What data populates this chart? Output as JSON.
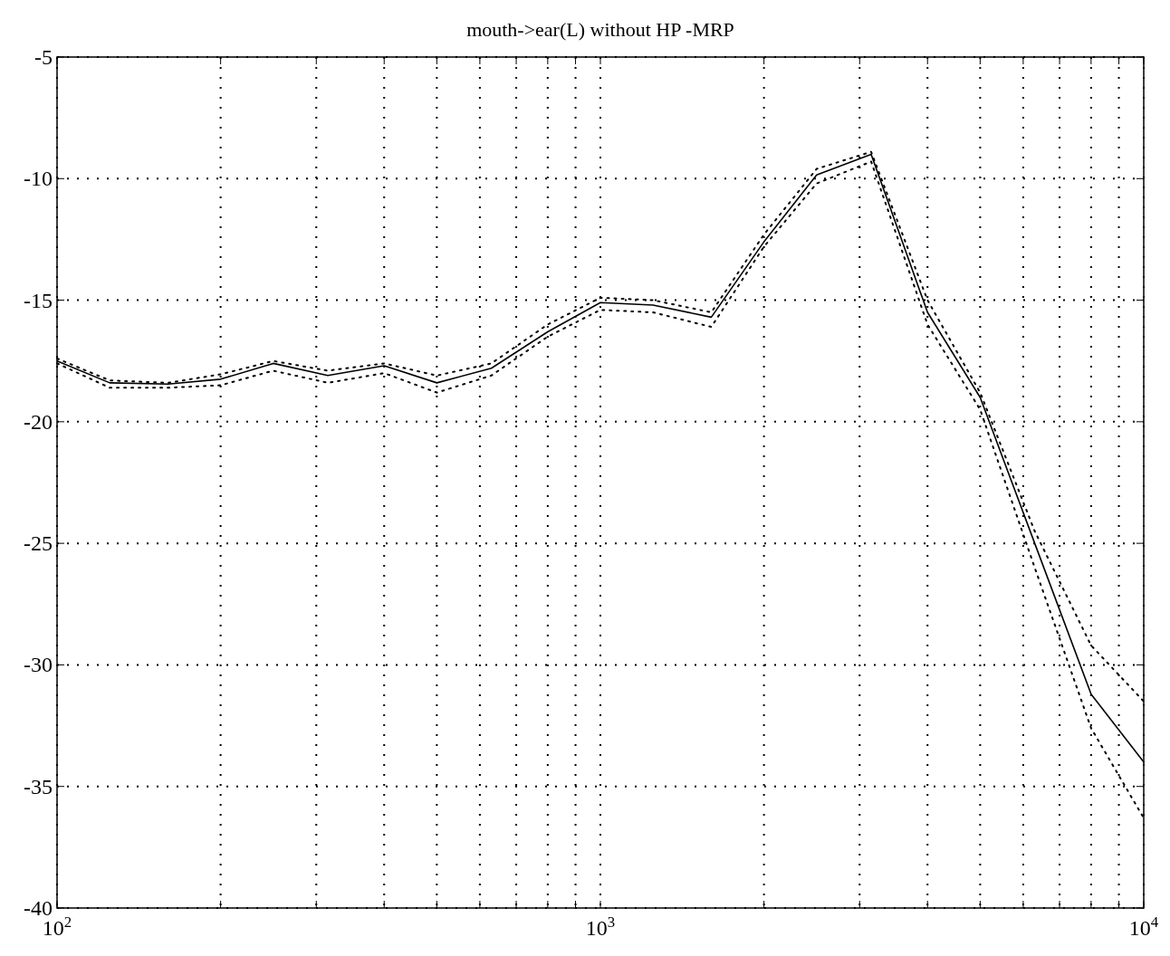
{
  "chart_data": {
    "type": "line",
    "title": "mouth->ear(L) without HP -MRP",
    "log": "x",
    "grid": true,
    "x": [
      100,
      125,
      160,
      200,
      250,
      315,
      400,
      500,
      630,
      800,
      1000,
      1250,
      1600,
      2000,
      2500,
      3150,
      4000,
      5000,
      6300,
      8000,
      10000
    ],
    "series": [
      {
        "color": "#000000",
        "line_style": "solid",
        "values": [
          -17.5,
          -18.4,
          -18.45,
          -18.25,
          -17.6,
          -18.1,
          -17.7,
          -18.4,
          -17.8,
          -16.3,
          -15.1,
          -15.2,
          -15.7,
          -12.6,
          -9.85,
          -9.0,
          -15.5,
          -19.0,
          -25.0,
          -31.2,
          -34.0
        ]
      },
      {
        "color": "#000000",
        "line_style": "dotted",
        "values": [
          -17.4,
          -18.3,
          -18.4,
          -18.05,
          -17.5,
          -17.9,
          -17.6,
          -18.1,
          -17.6,
          -16.0,
          -14.9,
          -15.0,
          -15.5,
          -12.3,
          -9.6,
          -8.9,
          -15.0,
          -18.8,
          -24.5,
          -29.2,
          -31.5
        ]
      },
      {
        "color": "#000000",
        "line_style": "dotted",
        "values": [
          -17.6,
          -18.6,
          -18.6,
          -18.5,
          -17.9,
          -18.4,
          -18.0,
          -18.8,
          -18.1,
          -16.5,
          -15.4,
          -15.5,
          -16.1,
          -12.8,
          -10.2,
          -9.3,
          -16.0,
          -19.5,
          -26.0,
          -32.6,
          -36.3
        ]
      }
    ],
    "xlim": [
      100,
      10000
    ],
    "ylim": [
      -40,
      -5
    ],
    "xticks": [
      {
        "value": 100,
        "label": "10$^{2}$"
      },
      {
        "value": 200,
        "label": null
      },
      {
        "value": 300,
        "label": null
      },
      {
        "value": 400,
        "label": null
      },
      {
        "value": 500,
        "label": null
      },
      {
        "value": 600,
        "label": null
      },
      {
        "value": 700,
        "label": null
      },
      {
        "value": 800,
        "label": null
      },
      {
        "value": 900,
        "label": null
      },
      {
        "value": 1000,
        "label": "10$^{3}$"
      },
      {
        "value": 2000,
        "label": null
      },
      {
        "value": 3000,
        "label": null
      },
      {
        "value": 4000,
        "label": null
      },
      {
        "value": 5000,
        "label": null
      },
      {
        "value": 6000,
        "label": null
      },
      {
        "value": 7000,
        "label": null
      },
      {
        "value": 8000,
        "label": null
      },
      {
        "value": 9000,
        "label": null
      },
      {
        "value": 10000,
        "label": "10$^{4}$"
      }
    ],
    "yticks": [
      -40,
      -35,
      -30,
      -25,
      -20,
      -15,
      -10,
      -5
    ]
  }
}
